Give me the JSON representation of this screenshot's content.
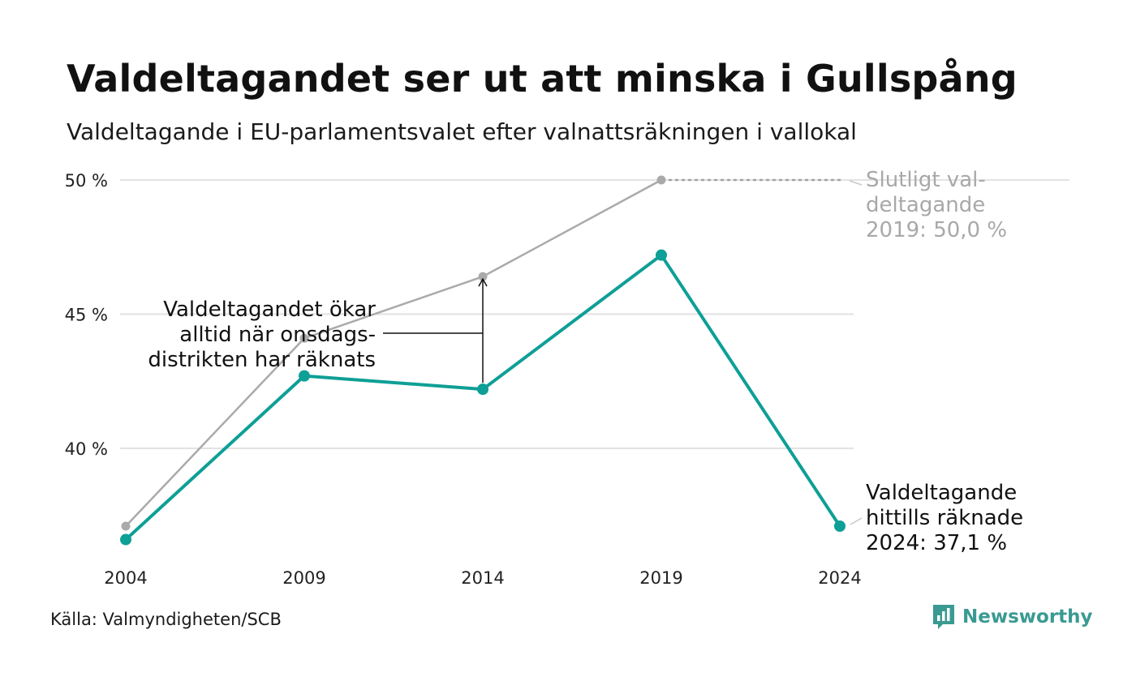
{
  "title": "Valdeltagandet ser ut att minska i Gullspång",
  "subtitle": "Valdeltagande i EU-parlamentsvalet efter valnattsräkningen i vallokal",
  "source": "Källa: Valmyndigheten/SCB",
  "brand": {
    "name": "Newsworthy",
    "icon": "newsworthy-logo-icon",
    "color": "#3a9a92"
  },
  "chart_data": {
    "type": "line",
    "x": [
      2004,
      2009,
      2014,
      2019,
      2024
    ],
    "x_tick_labels": [
      "2004",
      "2009",
      "2014",
      "2019",
      "2024"
    ],
    "ylim": [
      36,
      50
    ],
    "y_ticks": [
      40,
      45,
      50
    ],
    "y_tick_labels": [
      "40 %",
      "45 %",
      "50 %"
    ],
    "grid": true,
    "series": [
      {
        "id": "final",
        "color": "#aaaaaa",
        "values": [
          37.1,
          44.1,
          46.4,
          50.0,
          null
        ]
      },
      {
        "id": "preliminary",
        "color": "#0e9f96",
        "values": [
          36.6,
          42.7,
          42.2,
          47.2,
          37.1
        ]
      }
    ],
    "annotations": {
      "final_2019": [
        "Slutligt val-",
        "deltagande",
        "2019: 50,0 %"
      ],
      "preliminary_2024": [
        "Valdeltagande",
        "hittills räknade",
        "2024: 37,1 %"
      ],
      "gap": [
        "Valdeltagandet ökar",
        "alltid när onsdags-",
        "distrikten har räknats"
      ]
    }
  }
}
